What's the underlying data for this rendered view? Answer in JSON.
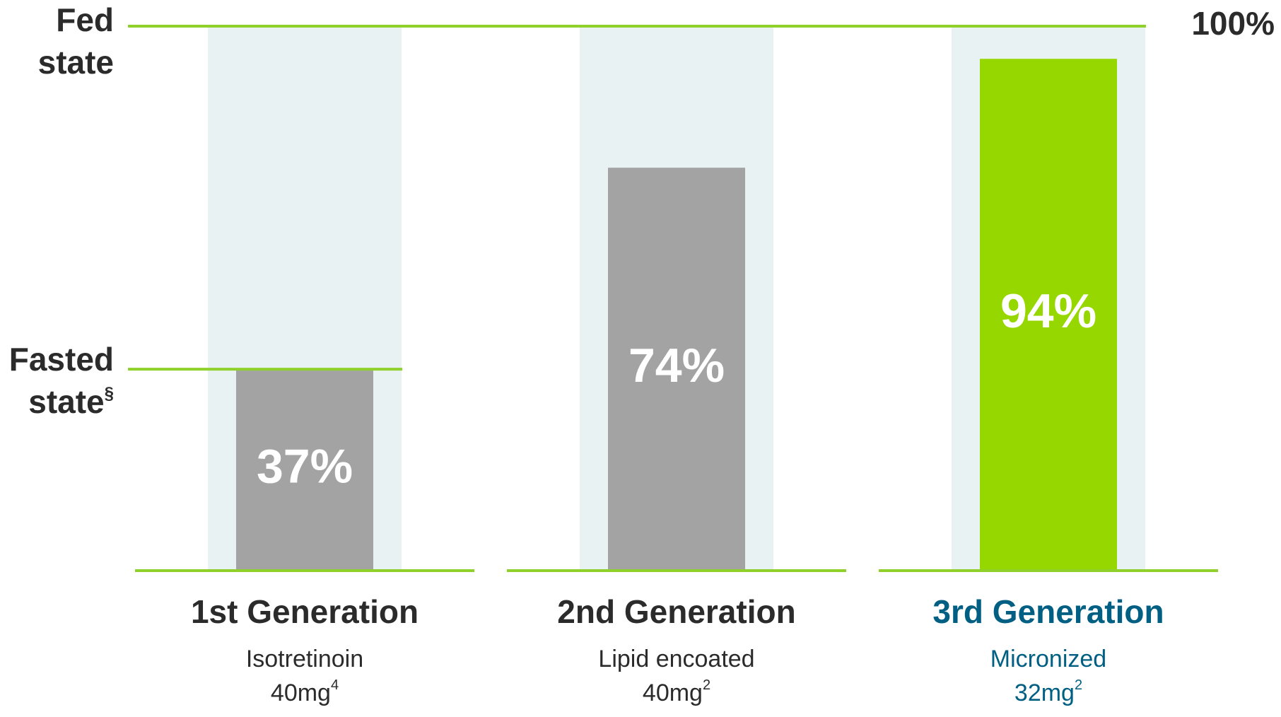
{
  "chart_data": {
    "type": "bar",
    "categories": [
      "1st Generation",
      "2nd Generation",
      "3rd Generation"
    ],
    "descriptions": [
      {
        "lines": [
          "Isotretinoin",
          "40mg"
        ],
        "note": "4"
      },
      {
        "lines": [
          "Lipid encoated",
          "40mg"
        ],
        "note": "2"
      },
      {
        "lines": [
          "Micronized",
          "32mg"
        ],
        "note": "2"
      }
    ],
    "values": [
      37,
      74,
      94
    ],
    "value_labels": [
      "37%",
      "74%",
      "94%"
    ],
    "colors": [
      "#a3a3a3",
      "#a3a3a3",
      "#97d700"
    ],
    "label_colors": [
      "#2b2b2b",
      "#2b2b2b",
      "#005f83"
    ],
    "background_color": "#e9f2f2",
    "line_color": "#8fd12a",
    "ylim": [
      0,
      100
    ],
    "yticks": [
      {
        "value": 100,
        "label": "100%"
      }
    ],
    "reference_lines": [
      {
        "value": 100,
        "lines": [
          "Fed",
          "state"
        ]
      },
      {
        "value": 37,
        "lines": [
          "Fasted",
          "state"
        ],
        "note": "§"
      }
    ]
  }
}
